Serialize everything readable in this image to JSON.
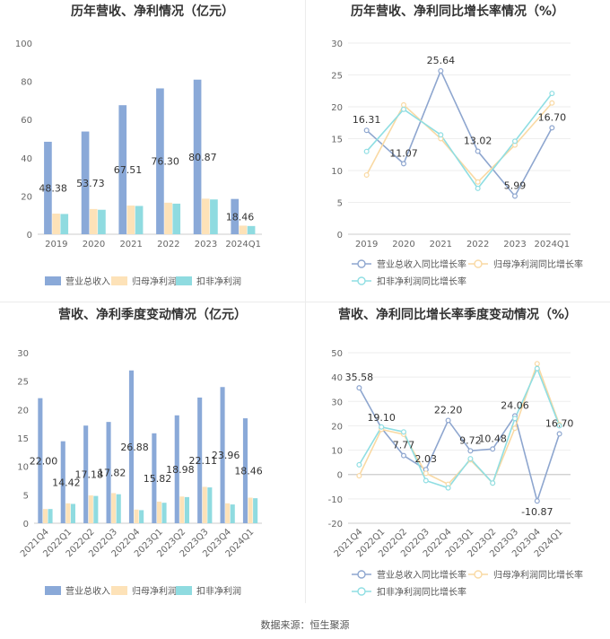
{
  "source_note": "数据来源：恒生聚源",
  "colors": {
    "revenue": "#8aa9d8",
    "net_profit": "#fde2b8",
    "deducted_net_profit": "#8fdbe0",
    "revenue_line": "#8ea6cf",
    "net_profit_line": "#f9d9a3",
    "deducted_line": "#8fdee3",
    "axis": "#cccccc",
    "grid": "#eeeeee",
    "text": "#333333",
    "tick": "#666666"
  },
  "chart_data": [
    {
      "id": "annual-bar",
      "type": "bar",
      "title": "历年营收、净利情况（亿元）",
      "categories": [
        "2019",
        "2020",
        "2021",
        "2022",
        "2023",
        "2024Q1"
      ],
      "ylim": [
        0,
        100
      ],
      "yticks": [
        0,
        20,
        40,
        60,
        80,
        100
      ],
      "series": [
        {
          "name": "营业总收入",
          "values": [
            48.38,
            53.73,
            67.51,
            76.3,
            80.87,
            18.46
          ],
          "labels": [
            "48.38",
            "53.73",
            "67.51",
            "76.30",
            "80.87",
            "18.46"
          ]
        },
        {
          "name": "归母净利润",
          "values": [
            10.8,
            13.2,
            15.0,
            16.5,
            18.6,
            4.5
          ]
        },
        {
          "name": "扣非净利润",
          "values": [
            10.6,
            12.8,
            14.8,
            16.0,
            18.2,
            4.3
          ]
        }
      ],
      "legend": "bottom"
    },
    {
      "id": "annual-line",
      "type": "line",
      "title": "历年营收、净利同比增长率情况（%）",
      "categories": [
        "2019",
        "2020",
        "2021",
        "2022",
        "2023",
        "2024Q1"
      ],
      "ylim": [
        0,
        30
      ],
      "yticks": [
        0,
        5,
        10,
        15,
        20,
        25,
        30
      ],
      "series": [
        {
          "name": "营业总收入同比增长率",
          "values": [
            16.31,
            11.07,
            25.64,
            13.02,
            5.99,
            16.7
          ],
          "labels": [
            "16.31",
            "11.07",
            "25.64",
            "13.02",
            "5.99",
            "16.70"
          ]
        },
        {
          "name": "归母净利润同比增长率",
          "values": [
            9.3,
            20.3,
            15.0,
            8.2,
            14.0,
            20.6
          ]
        },
        {
          "name": "扣非净利润同比增长率",
          "values": [
            13.0,
            19.6,
            15.6,
            7.2,
            14.6,
            22.1
          ]
        }
      ],
      "legend": "bottom"
    },
    {
      "id": "quarterly-bar",
      "type": "bar",
      "title": "营收、净利季度变动情况（亿元）",
      "categories": [
        "2021Q4",
        "2022Q1",
        "2022Q2",
        "2022Q3",
        "2022Q4",
        "2023Q1",
        "2023Q2",
        "2023Q3",
        "2023Q4",
        "2024Q1"
      ],
      "ylim": [
        0,
        30
      ],
      "yticks": [
        0,
        5,
        10,
        15,
        20,
        25,
        30
      ],
      "series": [
        {
          "name": "营业总收入",
          "values": [
            22.0,
            14.42,
            17.18,
            17.82,
            26.88,
            15.82,
            18.98,
            22.11,
            23.96,
            18.46
          ],
          "labels": [
            "22.00",
            "14.42",
            "17.18",
            "17.82",
            "26.88",
            "15.82",
            "18.98",
            "22.11",
            "23.96",
            "18.46"
          ]
        },
        {
          "name": "归母净利润",
          "values": [
            2.5,
            3.5,
            4.9,
            5.3,
            2.4,
            3.8,
            4.7,
            6.4,
            3.5,
            4.5
          ]
        },
        {
          "name": "扣非净利润",
          "values": [
            2.5,
            3.4,
            4.8,
            5.1,
            2.3,
            3.6,
            4.6,
            6.3,
            3.3,
            4.4
          ]
        }
      ],
      "legend": "bottom"
    },
    {
      "id": "quarterly-line",
      "type": "line",
      "title": "营收、净利同比增长率季度变动情况（%）",
      "categories": [
        "2021Q4",
        "2022Q1",
        "2022Q2",
        "2022Q3",
        "2022Q4",
        "2023Q1",
        "2023Q2",
        "2023Q3",
        "2023Q4",
        "2024Q1"
      ],
      "ylim": [
        -20,
        50
      ],
      "yticks": [
        -20,
        -10,
        0,
        10,
        20,
        30,
        40,
        50
      ],
      "series": [
        {
          "name": "营业总收入同比增长率",
          "values": [
            35.58,
            19.1,
            7.77,
            2.03,
            22.2,
            9.72,
            10.48,
            24.06,
            -10.87,
            16.7
          ],
          "labels": [
            "35.58",
            "19.10",
            "7.77",
            "2.03",
            "22.20",
            "9.72",
            "10.48",
            "24.06",
            "-10.87",
            "16.70"
          ]
        },
        {
          "name": "归母净利润同比增长率",
          "values": [
            -0.5,
            18.5,
            16.5,
            0.5,
            -4.0,
            6.0,
            -3.5,
            19.0,
            45.5,
            20.5
          ]
        },
        {
          "name": "扣非净利润同比增长率",
          "values": [
            4.0,
            19.5,
            17.5,
            -2.5,
            -5.5,
            6.5,
            -3.5,
            23.0,
            43.5,
            20.0
          ]
        }
      ],
      "legend": "bottom"
    }
  ]
}
